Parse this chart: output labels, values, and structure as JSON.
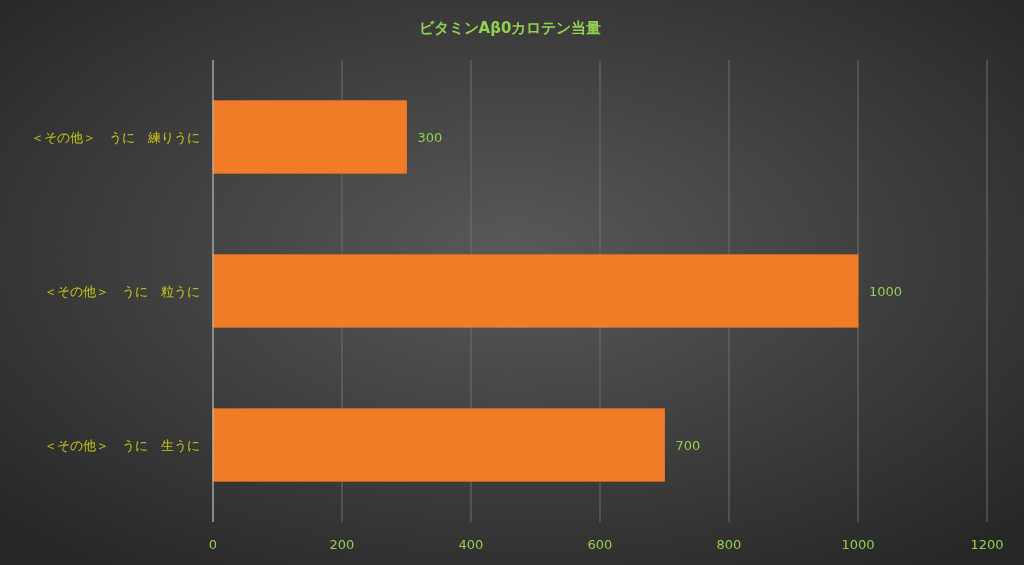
{
  "chart_data": {
    "type": "bar",
    "orientation": "horizontal",
    "title": "ビタミンAβ0カロテン当量",
    "categories": [
      "＜その他＞　うに　練りうに",
      "＜その他＞　うに　粒うに",
      "＜その他＞　うに　生うに"
    ],
    "values": [
      300,
      1000,
      700
    ],
    "color": "#f07c28",
    "xlim": [
      0,
      1200
    ],
    "xticks": [
      0,
      200,
      400,
      600,
      800,
      1000,
      1200
    ],
    "grid": "x",
    "data_labels": true
  }
}
